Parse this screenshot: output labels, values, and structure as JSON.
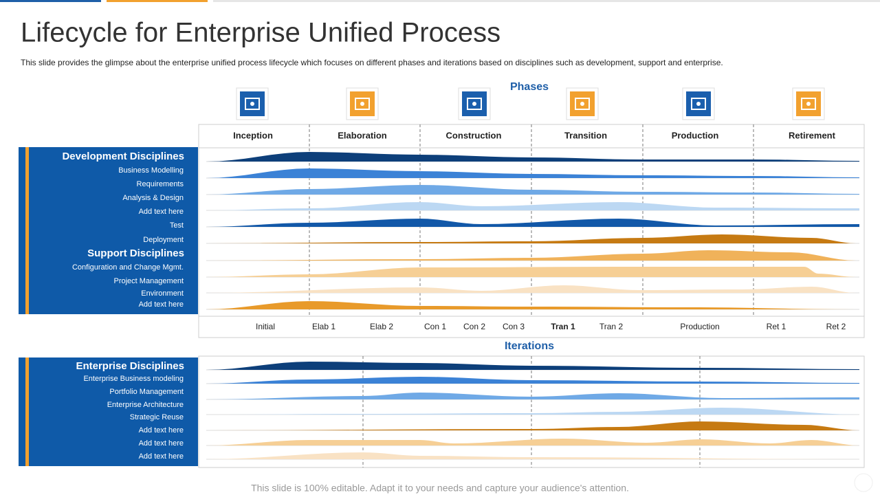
{
  "header": {
    "title": "Lifecycle for Enterprise Unified Process",
    "subtitle": "This slide provides  the glimpse about the enterprise unified  process lifecycle which focuses on different  phases and iterations based on disciplines such as development,  support and enterprise."
  },
  "phases": {
    "label": "Phases",
    "items": [
      "Inception",
      "Elaboration",
      "Construction",
      "Transition",
      "Production",
      "Retirement"
    ]
  },
  "development": {
    "heading": "Development Disciplines",
    "items": [
      "Business Modelling",
      "Requirements",
      "Analysis & Design",
      "Add text here",
      "Test",
      "Deployment"
    ]
  },
  "support": {
    "heading": "Support Disciplines",
    "items": [
      "Configuration and Change Mgmt.",
      "Project Management",
      "Environment",
      "Add text here"
    ]
  },
  "iterations": {
    "label": "Iterations",
    "items": [
      "Initial",
      "Elab 1",
      "Elab 2",
      "Con 1",
      "Con 2",
      "Con 3",
      "Tran 1",
      "Tran 2",
      "Production",
      "Ret 1",
      "Ret 2"
    ]
  },
  "enterprise": {
    "heading": "Enterprise Disciplines",
    "items": [
      "Enterprise Business modeling",
      "Portfolio Management",
      "Enterprise Architecture",
      "Strategic Reuse",
      "Add text here",
      "Add text here",
      "Add text here"
    ]
  },
  "footer": "This slide is 100% editable. Adapt it to your needs and capture your audience's attention."
}
